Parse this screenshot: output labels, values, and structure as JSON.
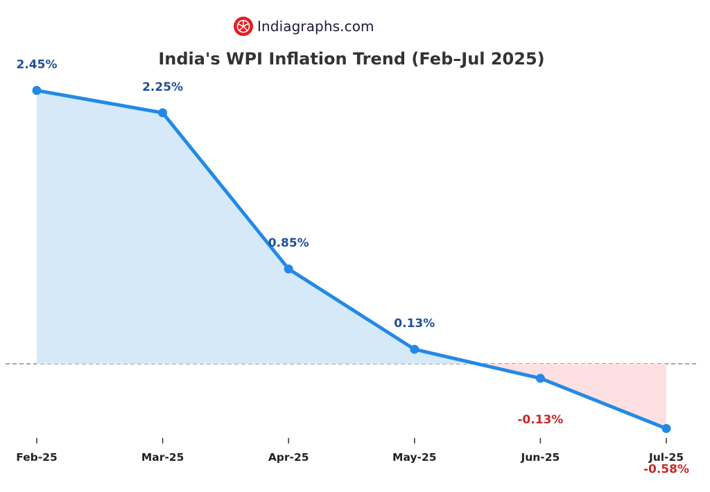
{
  "brand": {
    "name": "Indiagraphs.com",
    "logo_icon": "pie-chart-logo-icon",
    "logo_color": "#e31e24"
  },
  "chart_data": {
    "type": "area",
    "title": "India's WPI Inflation Trend (Feb–Jul 2025)",
    "xlabel": "",
    "ylabel": "",
    "categories": [
      "Feb-25",
      "Mar-25",
      "Apr-25",
      "May-25",
      "Jun-25",
      "Jul-25"
    ],
    "series": [
      {
        "values": [
          2.45,
          2.25,
          0.85,
          0.13,
          -0.13,
          -0.58
        ],
        "data_labels": [
          "2.45%",
          "2.25%",
          "0.85%",
          "0.13%",
          "-0.13%",
          "-0.58%"
        ]
      }
    ],
    "ylim": [
      -0.68,
      2.65
    ],
    "grid": false,
    "y_axis_visible": false,
    "zero_reference_line": {
      "y": 0,
      "style": "dashed",
      "color": "#999999"
    },
    "colors": {
      "line": "#2389e6",
      "positive_fill": "#d5e9f9",
      "negative_fill": "#fde0e1",
      "positive_label": "#1f4e9c",
      "negative_label": "#c62828",
      "tick_label": "#222222"
    }
  }
}
